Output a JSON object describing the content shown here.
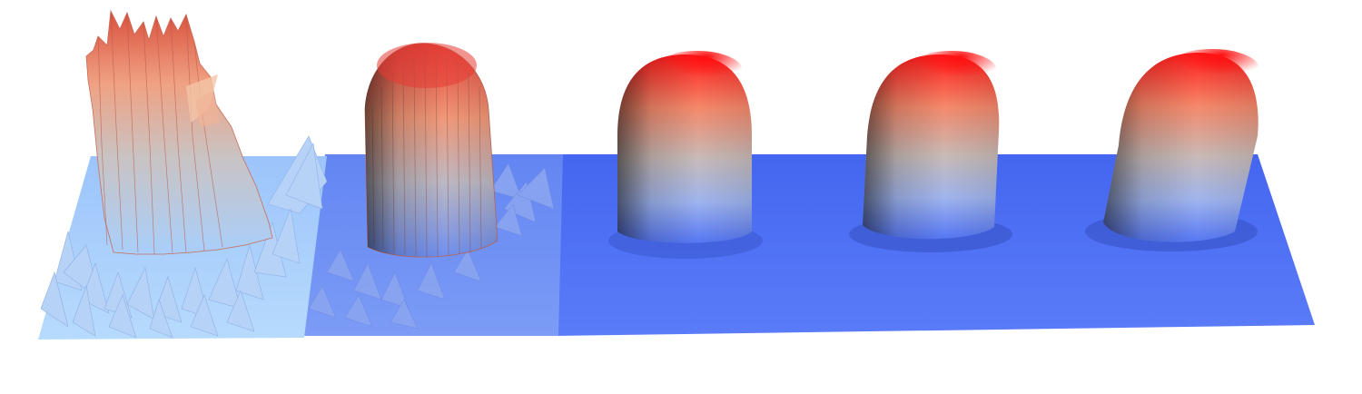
{
  "scene": {
    "description_visible_text": "",
    "panels": [
      {
        "id": "panel-1",
        "surface": "noisy-spiky",
        "plane_color": "#a9cffb"
      },
      {
        "id": "panel-2",
        "surface": "moderately-noisy",
        "plane_color": "#6f8ff0"
      },
      {
        "id": "panel-3",
        "surface": "smooth",
        "plane_color": "#4d6ef4"
      },
      {
        "id": "panel-4",
        "surface": "smooth",
        "plane_color": "#4d6ef4"
      },
      {
        "id": "panel-5",
        "surface": "smooth",
        "plane_color": "#4d6ef4"
      }
    ],
    "colors": {
      "peak_red": "#ff1a1a",
      "mid_salmon": "#f2a07e",
      "mid_gray": "#c9c3c3",
      "base_blue": "#4d6ef4",
      "light_blue": "#a9cffb"
    }
  }
}
